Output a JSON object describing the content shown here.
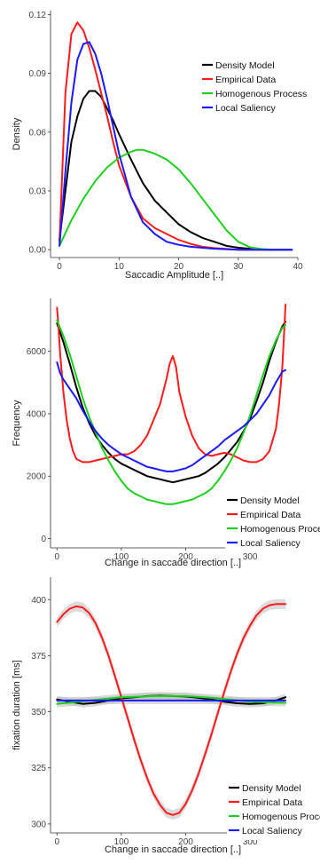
{
  "chart_data": [
    {
      "type": "line",
      "xlabel": "Saccadic Amplitude [..]",
      "ylabel": "Density",
      "xlim": [
        -1.5,
        40
      ],
      "ylim": [
        -0.004,
        0.122
      ],
      "xticks": [
        0,
        10,
        20,
        30,
        40
      ],
      "yticks": [
        0.0,
        0.03,
        0.06,
        0.09,
        0.12
      ],
      "ytick_labels": [
        "0.00",
        "0.03",
        "0.06",
        "0.09",
        "0.12"
      ],
      "legend_position": "right",
      "series": [
        {
          "name": "Density Model",
          "color": "#000000",
          "x": [
            0,
            1,
            2,
            3,
            4,
            5,
            6,
            7,
            8,
            9,
            10,
            12,
            14,
            16,
            18,
            20,
            22,
            24,
            26,
            28,
            30,
            32,
            35,
            39
          ],
          "y": [
            0.005,
            0.03,
            0.055,
            0.068,
            0.077,
            0.081,
            0.081,
            0.078,
            0.072,
            0.066,
            0.059,
            0.046,
            0.034,
            0.025,
            0.019,
            0.013,
            0.009,
            0.006,
            0.004,
            0.002,
            0.001,
            0.0005,
            0.0,
            0.0
          ]
        },
        {
          "name": "Empirical Data",
          "color": "#ff1a1a",
          "x": [
            0,
            1,
            2,
            3,
            4,
            5,
            6,
            7,
            8,
            9,
            10,
            12,
            14,
            16,
            18,
            20,
            22,
            24,
            26,
            28,
            30,
            35,
            39
          ],
          "y": [
            0.004,
            0.08,
            0.11,
            0.116,
            0.112,
            0.103,
            0.092,
            0.08,
            0.068,
            0.055,
            0.043,
            0.027,
            0.016,
            0.011,
            0.008,
            0.005,
            0.003,
            0.0015,
            0.0008,
            0.0004,
            0.0,
            0.0,
            0.0
          ]
        },
        {
          "name": "Homogenous Process",
          "color": "#1ed01e",
          "x": [
            0,
            2,
            4,
            6,
            8,
            10,
            12,
            13,
            14,
            16,
            18,
            20,
            22,
            24,
            26,
            28,
            30,
            32,
            34,
            36,
            39
          ],
          "y": [
            0.002,
            0.015,
            0.026,
            0.035,
            0.042,
            0.047,
            0.05,
            0.051,
            0.051,
            0.049,
            0.046,
            0.041,
            0.034,
            0.026,
            0.018,
            0.01,
            0.004,
            0.0012,
            0.0003,
            0.0,
            0.0
          ]
        },
        {
          "name": "Local Saliency",
          "color": "#1a1aff",
          "x": [
            0,
            1,
            2,
            3,
            4,
            5,
            6,
            7,
            8,
            9,
            10,
            12,
            14,
            16,
            18,
            20,
            22,
            24,
            26,
            30,
            39
          ],
          "y": [
            0.002,
            0.04,
            0.075,
            0.097,
            0.105,
            0.106,
            0.1,
            0.09,
            0.077,
            0.063,
            0.049,
            0.027,
            0.014,
            0.008,
            0.004,
            0.0025,
            0.0015,
            0.001,
            0.0005,
            0.0,
            0.0
          ]
        }
      ]
    },
    {
      "type": "line",
      "xlabel": "Change in saccade direction [..]",
      "ylabel": "Frequency",
      "xlim": [
        -10,
        370
      ],
      "ylim": [
        -300,
        7700
      ],
      "xticks": [
        0,
        100,
        200,
        300
      ],
      "yticks": [
        0,
        2000,
        4000,
        6000
      ],
      "legend_position": "bottom-right",
      "series": [
        {
          "name": "Density Model",
          "color": "#000000",
          "x": [
            0,
            10,
            20,
            30,
            40,
            50,
            60,
            70,
            80,
            90,
            100,
            110,
            120,
            130,
            140,
            150,
            160,
            170,
            180,
            190,
            200,
            210,
            220,
            230,
            240,
            250,
            260,
            270,
            280,
            290,
            300,
            310,
            320,
            330,
            340,
            350,
            355
          ],
          "y": [
            6900,
            6300,
            5600,
            4850,
            4200,
            3700,
            3300,
            3000,
            2750,
            2550,
            2400,
            2300,
            2200,
            2100,
            2000,
            1950,
            1900,
            1850,
            1800,
            1850,
            1900,
            1950,
            2000,
            2100,
            2250,
            2400,
            2600,
            2850,
            3100,
            3450,
            3850,
            4400,
            5000,
            5700,
            6300,
            6800,
            6950
          ]
        },
        {
          "name": "Empirical Data",
          "color": "#ff1a1a",
          "x": [
            0,
            2,
            5,
            10,
            15,
            20,
            25,
            30,
            40,
            50,
            60,
            70,
            80,
            90,
            100,
            110,
            120,
            130,
            140,
            150,
            160,
            170,
            175,
            180,
            185,
            190,
            200,
            210,
            220,
            230,
            240,
            250,
            260,
            270,
            280,
            290,
            300,
            310,
            320,
            330,
            340,
            345,
            350,
            353,
            355
          ],
          "y": [
            7400,
            6900,
            5900,
            4700,
            3800,
            3200,
            2800,
            2550,
            2450,
            2450,
            2500,
            2550,
            2600,
            2650,
            2700,
            2700,
            2800,
            3000,
            3300,
            3800,
            4300,
            5100,
            5600,
            5850,
            5500,
            4700,
            3900,
            3300,
            2900,
            2700,
            2650,
            2700,
            2750,
            2700,
            2600,
            2500,
            2450,
            2450,
            2550,
            2800,
            3500,
            4300,
            5500,
            6700,
            7500
          ]
        },
        {
          "name": "Homogenous Process",
          "color": "#1ed01e",
          "x": [
            0,
            10,
            20,
            30,
            40,
            50,
            60,
            70,
            80,
            90,
            100,
            110,
            120,
            130,
            140,
            150,
            160,
            170,
            180,
            190,
            200,
            210,
            220,
            230,
            240,
            250,
            260,
            270,
            280,
            290,
            300,
            310,
            320,
            330,
            340,
            350,
            355
          ],
          "y": [
            7000,
            6500,
            5900,
            5200,
            4500,
            3900,
            3400,
            2900,
            2500,
            2150,
            1850,
            1600,
            1450,
            1350,
            1250,
            1200,
            1150,
            1100,
            1100,
            1150,
            1200,
            1250,
            1350,
            1450,
            1600,
            1850,
            2150,
            2500,
            2900,
            3400,
            3950,
            4600,
            5250,
            5850,
            6350,
            6750,
            6850
          ]
        },
        {
          "name": "Local Saliency",
          "color": "#1a1aff",
          "x": [
            0,
            5,
            10,
            20,
            30,
            40,
            50,
            60,
            70,
            80,
            90,
            100,
            110,
            120,
            130,
            140,
            150,
            160,
            170,
            180,
            190,
            200,
            210,
            220,
            230,
            240,
            250,
            260,
            270,
            280,
            290,
            300,
            310,
            320,
            330,
            340,
            350,
            355
          ],
          "y": [
            5650,
            5300,
            5100,
            4800,
            4500,
            4100,
            3750,
            3450,
            3200,
            3000,
            2850,
            2700,
            2600,
            2500,
            2400,
            2300,
            2250,
            2200,
            2150,
            2150,
            2200,
            2250,
            2350,
            2500,
            2650,
            2800,
            2950,
            3150,
            3300,
            3450,
            3600,
            3800,
            4000,
            4300,
            4600,
            5000,
            5350,
            5400
          ]
        }
      ]
    },
    {
      "type": "line",
      "xlabel": "Change in saccade direction [..]",
      "ylabel": "fixation duration [ms]",
      "xlim": [
        -10,
        370
      ],
      "ylim": [
        296,
        410
      ],
      "xticks": [
        0,
        100,
        200,
        300
      ],
      "yticks": [
        300,
        325,
        350,
        375,
        400
      ],
      "legend_position": "bottom-right",
      "series": [
        {
          "name": "Density Model",
          "color": "#000000",
          "x": [
            0,
            20,
            40,
            60,
            80,
            100,
            120,
            140,
            160,
            180,
            200,
            220,
            240,
            260,
            280,
            300,
            320,
            340,
            355
          ],
          "y": [
            355.5,
            354.5,
            353.5,
            354.0,
            355.0,
            356.0,
            356.5,
            357.0,
            357.2,
            357.0,
            356.8,
            356.2,
            355.5,
            354.5,
            353.8,
            353.5,
            353.8,
            355.0,
            356.5
          ]
        },
        {
          "name": "Empirical Data",
          "color": "#ff1a1a",
          "x": [
            0,
            10,
            20,
            30,
            40,
            50,
            60,
            70,
            80,
            90,
            100,
            110,
            120,
            130,
            140,
            150,
            160,
            170,
            180,
            190,
            200,
            210,
            220,
            230,
            240,
            250,
            260,
            270,
            280,
            290,
            300,
            310,
            320,
            330,
            340,
            350,
            355
          ],
          "y": [
            390,
            393.5,
            396,
            397,
            396.5,
            394,
            389.5,
            383,
            375,
            366,
            356.5,
            347,
            337.5,
            328.5,
            320.5,
            313.5,
            308.5,
            305,
            304,
            305,
            309,
            315,
            322.5,
            331,
            340,
            349.5,
            359,
            368,
            376,
            383,
            388.5,
            393,
            396,
            397.5,
            398,
            398,
            398
          ]
        },
        {
          "name": "Homogenous Process",
          "color": "#1ed01e",
          "x": [
            0,
            50,
            100,
            150,
            200,
            250,
            300,
            355
          ],
          "y": [
            353.5,
            355,
            356.5,
            357,
            357,
            356,
            354.5,
            354
          ]
        },
        {
          "name": "Local Saliency",
          "color": "#1a1aff",
          "x": [
            0,
            100,
            200,
            300,
            355
          ],
          "y": [
            355,
            355,
            355,
            355,
            355
          ]
        }
      ]
    }
  ]
}
